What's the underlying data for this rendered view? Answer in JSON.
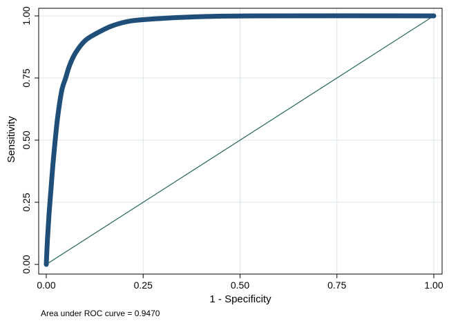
{
  "chart_data": {
    "type": "line",
    "xlabel": "1 - Specificity",
    "ylabel": "Sensitivity",
    "xlim": [
      0,
      1
    ],
    "ylim": [
      0,
      1
    ],
    "x_ticks": [
      "0.00",
      "0.25",
      "0.50",
      "0.75",
      "1.00"
    ],
    "y_ticks": [
      "0.00",
      "0.25",
      "0.50",
      "0.75",
      "1.00"
    ],
    "grid": true,
    "note": "Area under ROC curve = 0.9470",
    "colors": {
      "roc": "#1f4e79",
      "reference": "#2e6b5e",
      "grid": "#dbe5ea",
      "frame": "#000000"
    },
    "series": [
      {
        "points": [
          [
            0.0,
            0.0
          ],
          [
            0.003,
            0.1
          ],
          [
            0.007,
            0.2
          ],
          [
            0.012,
            0.3
          ],
          [
            0.017,
            0.4
          ],
          [
            0.023,
            0.5
          ],
          [
            0.03,
            0.6
          ],
          [
            0.04,
            0.7
          ],
          [
            0.05,
            0.75
          ],
          [
            0.06,
            0.8
          ],
          [
            0.075,
            0.85
          ],
          [
            0.1,
            0.9
          ],
          [
            0.13,
            0.93
          ],
          [
            0.17,
            0.96
          ],
          [
            0.22,
            0.98
          ],
          [
            0.3,
            0.99
          ],
          [
            0.4,
            0.997
          ],
          [
            0.55,
            1.0
          ],
          [
            1.0,
            1.0
          ]
        ]
      },
      {
        "points": [
          [
            0.0,
            0.0
          ],
          [
            1.0,
            1.0
          ]
        ]
      }
    ]
  }
}
